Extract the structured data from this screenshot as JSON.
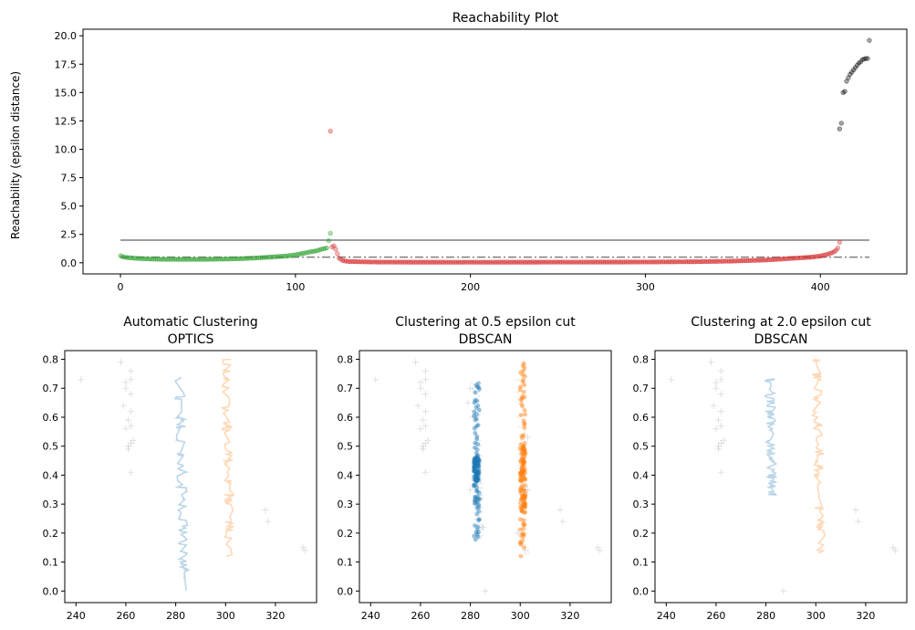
{
  "chart_data": [
    {
      "id": "reachability",
      "type": "scatter",
      "title": "Reachability Plot",
      "xlabel": "",
      "ylabel": "Reachability (epsilon distance)",
      "xlim": [
        -21.4,
        449.4
      ],
      "ylim": [
        -0.98,
        20.58
      ],
      "xticks": [
        0,
        100,
        200,
        300,
        400
      ],
      "yticks": [
        0.0,
        2.5,
        5.0,
        7.5,
        10.0,
        12.5,
        15.0,
        17.5,
        20.0
      ],
      "grid": false,
      "legend": "none",
      "series": [
        {
          "color": "#2ca02c",
          "x_range": [
            0,
            120
          ],
          "points": [
            [
              0,
              0.62
            ],
            [
              2,
              0.5
            ],
            [
              5,
              0.45
            ],
            [
              10,
              0.38
            ],
            [
              20,
              0.32
            ],
            [
              30,
              0.3
            ],
            [
              40,
              0.3
            ],
            [
              50,
              0.31
            ],
            [
              60,
              0.33
            ],
            [
              70,
              0.37
            ],
            [
              80,
              0.45
            ],
            [
              90,
              0.55
            ],
            [
              95,
              0.6
            ],
            [
              100,
              0.7
            ],
            [
              105,
              0.85
            ],
            [
              108,
              0.95
            ],
            [
              110,
              1.0
            ],
            [
              112,
              1.05
            ],
            [
              115,
              1.2
            ],
            [
              118,
              1.3
            ],
            [
              120,
              2.6
            ]
          ]
        },
        {
          "color": "#d62728",
          "x_range": [
            120,
            411
          ],
          "points": [
            [
              120,
              11.6
            ],
            [
              121,
              1.4
            ],
            [
              122,
              1.5
            ],
            [
              123,
              1.2
            ],
            [
              125,
              0.4
            ],
            [
              127,
              0.2
            ],
            [
              130,
              0.12
            ],
            [
              140,
              0.08
            ],
            [
              150,
              0.06
            ],
            [
              200,
              0.05
            ],
            [
              250,
              0.06
            ],
            [
              300,
              0.07
            ],
            [
              330,
              0.1
            ],
            [
              350,
              0.15
            ],
            [
              370,
              0.25
            ],
            [
              380,
              0.35
            ],
            [
              385,
              0.4
            ],
            [
              390,
              0.45
            ],
            [
              395,
              0.5
            ],
            [
              400,
              0.6
            ],
            [
              403,
              0.7
            ],
            [
              405,
              0.8
            ],
            [
              407,
              0.9
            ],
            [
              409,
              1.1
            ],
            [
              410,
              1.3
            ],
            [
              411,
              1.8
            ]
          ]
        },
        {
          "color": "#000000",
          "x_range": [
            411,
            428
          ],
          "points": [
            [
              411,
              11.8
            ],
            [
              412,
              12.3
            ],
            [
              413,
              15.0
            ],
            [
              414,
              15.1
            ],
            [
              415,
              16.0
            ],
            [
              416,
              16.3
            ],
            [
              417,
              16.6
            ],
            [
              418,
              16.8
            ],
            [
              419,
              17.0
            ],
            [
              420,
              17.2
            ],
            [
              421,
              17.4
            ],
            [
              422,
              17.6
            ],
            [
              423,
              17.7
            ],
            [
              424,
              17.9
            ],
            [
              425,
              17.95
            ],
            [
              426,
              18.0
            ],
            [
              427,
              18.0
            ],
            [
              428,
              19.6
            ]
          ]
        }
      ],
      "reference_lines": [
        {
          "y": 2.0,
          "style": "solid",
          "color": "#7f7f7f"
        },
        {
          "y": 0.5,
          "style": "dashdot",
          "color": "#7f7f7f"
        }
      ]
    },
    {
      "id": "optics",
      "type": "scatter",
      "title": "Automatic Clustering\nOPTICS",
      "xlim": [
        235.5,
        336.5
      ],
      "ylim": [
        -0.04,
        0.83
      ],
      "xticks": [
        240,
        260,
        280,
        300,
        320
      ],
      "yticks": [
        0.0,
        0.1,
        0.2,
        0.3,
        0.4,
        0.5,
        0.6,
        0.7,
        0.8
      ],
      "clusters": [
        {
          "color": "#1f77b4",
          "alpha": 0.3,
          "x_center": 282,
          "y_range": [
            0.0,
            0.74
          ]
        },
        {
          "color": "#ff7f0e",
          "alpha": 0.3,
          "x_center": 301,
          "y_range": [
            0.12,
            0.8
          ]
        }
      ],
      "noise": {
        "marker": "+",
        "color": "#000000",
        "points": [
          [
            242,
            0.73
          ],
          [
            258,
            0.79
          ],
          [
            262,
            0.76
          ],
          [
            260,
            0.72
          ],
          [
            262,
            0.73
          ],
          [
            260,
            0.7
          ],
          [
            262,
            0.68
          ],
          [
            259,
            0.64
          ],
          [
            262,
            0.62
          ],
          [
            261,
            0.59
          ],
          [
            262,
            0.57
          ],
          [
            260,
            0.56
          ],
          [
            263,
            0.52
          ],
          [
            261,
            0.5
          ],
          [
            262,
            0.51
          ],
          [
            261,
            0.49
          ],
          [
            262,
            0.41
          ],
          [
            316,
            0.28
          ],
          [
            317,
            0.24
          ],
          [
            331,
            0.15
          ],
          [
            332,
            0.14
          ]
        ]
      }
    },
    {
      "id": "dbscan05",
      "type": "scatter",
      "title": "Clustering at 0.5 epsilon cut\nDBSCAN",
      "xlim": [
        235.5,
        336.5
      ],
      "ylim": [
        -0.04,
        0.83
      ],
      "xticks": [
        240,
        260,
        280,
        300,
        320
      ],
      "yticks": [
        0.0,
        0.1,
        0.2,
        0.3,
        0.4,
        0.5,
        0.6,
        0.7,
        0.8
      ],
      "clusters": [
        {
          "color": "#1f77b4",
          "alpha": 0.45,
          "x_center": 282.5,
          "y_range": [
            0.17,
            0.73
          ]
        },
        {
          "color": "#ff7f0e",
          "alpha": 0.45,
          "x_center": 301,
          "y_range": [
            0.12,
            0.8
          ]
        }
      ],
      "noise": {
        "marker": "+",
        "color": "#000000",
        "points": [
          [
            242,
            0.73
          ],
          [
            258,
            0.79
          ],
          [
            262,
            0.76
          ],
          [
            260,
            0.72
          ],
          [
            262,
            0.73
          ],
          [
            260,
            0.7
          ],
          [
            262,
            0.68
          ],
          [
            259,
            0.64
          ],
          [
            262,
            0.62
          ],
          [
            261,
            0.59
          ],
          [
            262,
            0.57
          ],
          [
            260,
            0.56
          ],
          [
            263,
            0.52
          ],
          [
            261,
            0.5
          ],
          [
            262,
            0.51
          ],
          [
            261,
            0.49
          ],
          [
            262,
            0.41
          ],
          [
            316,
            0.28
          ],
          [
            317,
            0.24
          ],
          [
            331,
            0.15
          ],
          [
            332,
            0.14
          ],
          [
            280,
            0.7
          ],
          [
            279,
            0.65
          ],
          [
            281,
            0.6
          ],
          [
            286,
            0.0
          ],
          [
            284,
            0.32
          ],
          [
            280,
            0.35
          ],
          [
            303,
            0.35
          ],
          [
            302,
            0.14
          ],
          [
            299,
            0.2
          ],
          [
            303,
            0.53
          ],
          [
            285,
            0.22
          ]
        ]
      }
    },
    {
      "id": "dbscan20",
      "type": "scatter",
      "title": "Clustering at 2.0 epsilon cut\nDBSCAN",
      "xlim": [
        235.5,
        336.5
      ],
      "ylim": [
        -0.04,
        0.83
      ],
      "xticks": [
        240,
        260,
        280,
        300,
        320
      ],
      "yticks": [
        0.0,
        0.1,
        0.2,
        0.3,
        0.4,
        0.5,
        0.6,
        0.7,
        0.8
      ],
      "clusters": [
        {
          "color": "#1f77b4",
          "alpha": 0.3,
          "x_center": 282,
          "y_range": [
            0.33,
            0.74
          ]
        },
        {
          "color": "#ff7f0e",
          "alpha": 0.3,
          "x_center": 301,
          "y_range": [
            0.12,
            0.8
          ]
        }
      ],
      "noise": {
        "marker": "+",
        "color": "#000000",
        "points": [
          [
            242,
            0.73
          ],
          [
            258,
            0.79
          ],
          [
            262,
            0.76
          ],
          [
            260,
            0.72
          ],
          [
            262,
            0.73
          ],
          [
            260,
            0.7
          ],
          [
            262,
            0.68
          ],
          [
            259,
            0.64
          ],
          [
            262,
            0.62
          ],
          [
            261,
            0.59
          ],
          [
            262,
            0.57
          ],
          [
            260,
            0.56
          ],
          [
            263,
            0.52
          ],
          [
            261,
            0.5
          ],
          [
            262,
            0.51
          ],
          [
            261,
            0.49
          ],
          [
            262,
            0.41
          ],
          [
            316,
            0.28
          ],
          [
            317,
            0.24
          ],
          [
            331,
            0.15
          ],
          [
            332,
            0.14
          ],
          [
            287,
            0.0
          ]
        ]
      }
    }
  ]
}
